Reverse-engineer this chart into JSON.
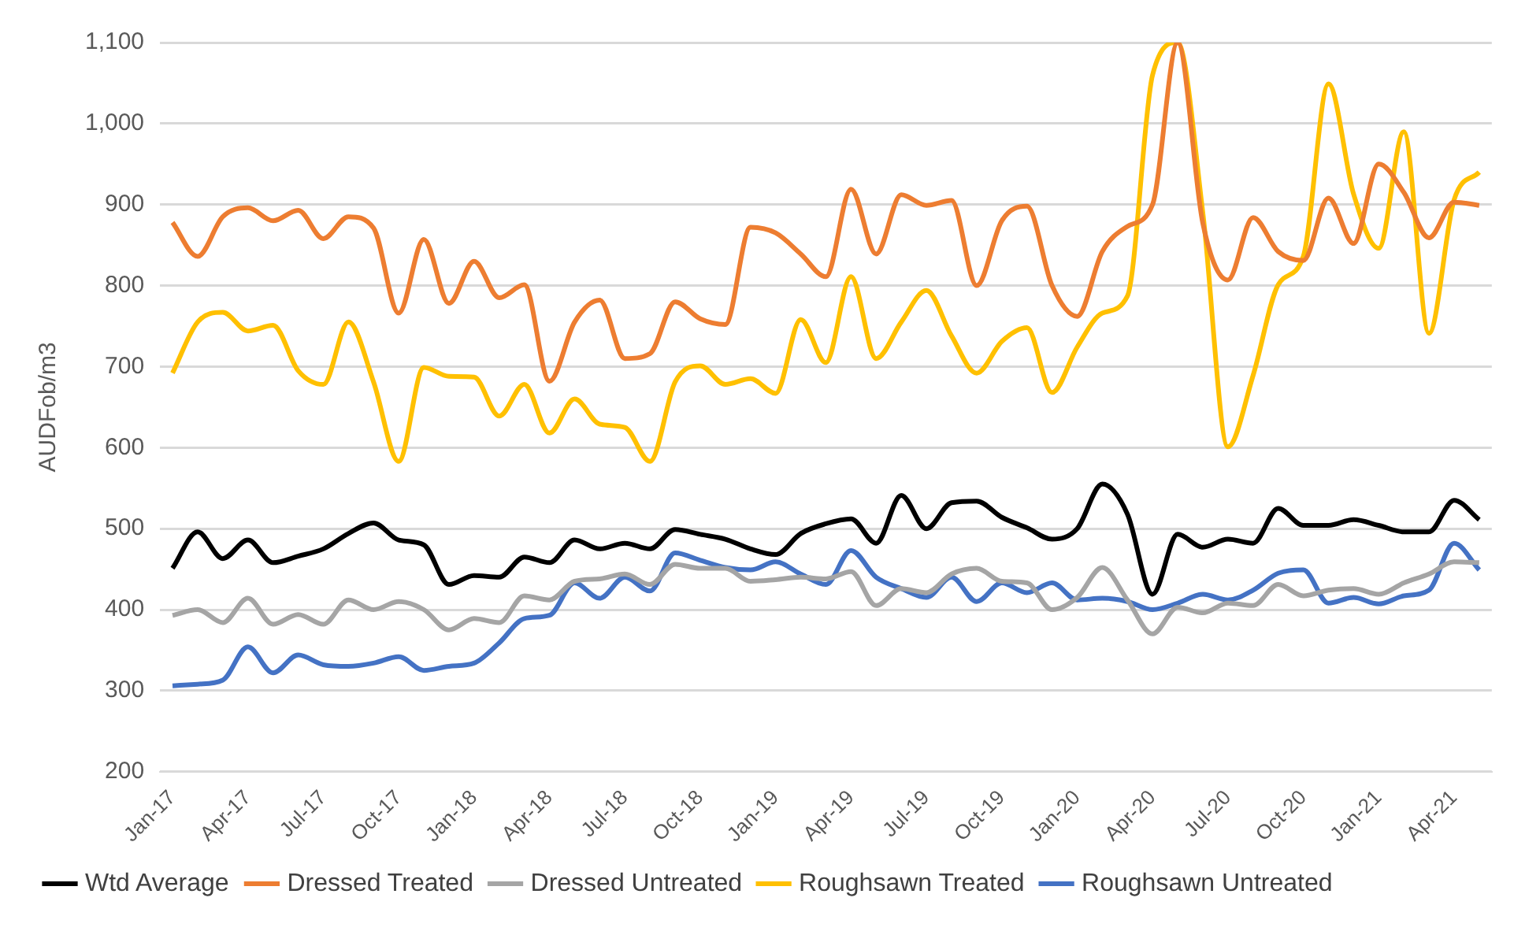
{
  "chart_data": {
    "type": "line",
    "ylabel": "AUDFob/m3",
    "categories": [
      "Jan-17",
      null,
      null,
      "Apr-17",
      null,
      null,
      "Jul-17",
      null,
      null,
      "Oct-17",
      null,
      null,
      "Jan-18",
      null,
      null,
      "Apr-18",
      null,
      null,
      "Jul-18",
      null,
      null,
      "Oct-18",
      null,
      null,
      "Jan-19",
      null,
      null,
      "Apr-19",
      null,
      null,
      "Jul-19",
      null,
      null,
      "Oct-19",
      null,
      null,
      "Jan-20",
      null,
      null,
      "Apr-20",
      null,
      null,
      "Jul-20",
      null,
      null,
      "Oct-20",
      null,
      null,
      "Jan-21",
      null,
      null,
      "Apr-21",
      null
    ],
    "series": [
      {
        "name": "Wtd Average",
        "color": "#000000",
        "values": [
          451,
          496,
          463,
          486,
          458,
          466,
          475,
          494,
          507,
          486,
          480,
          431,
          442,
          440,
          465,
          458,
          486,
          475,
          482,
          475,
          499,
          493,
          487,
          475,
          468,
          494,
          506,
          512,
          482,
          541,
          500,
          532,
          534,
          514,
          501,
          487,
          500,
          555,
          518,
          419,
          493,
          477,
          487,
          482,
          525,
          504,
          504,
          511,
          504,
          496,
          496,
          535,
          511
        ]
      },
      {
        "name": "Dressed Treated",
        "color": "#ed7d31",
        "values": [
          878,
          836,
          885,
          896,
          880,
          893,
          858,
          885,
          871,
          766,
          857,
          778,
          830,
          785,
          801,
          682,
          755,
          782,
          710,
          716,
          780,
          759,
          752,
          872,
          865,
          839,
          811,
          919,
          839,
          912,
          899,
          905,
          800,
          880,
          898,
          800,
          762,
          842,
          873,
          900,
          1100,
          877,
          807,
          884,
          842,
          831,
          908,
          852,
          950,
          915,
          859,
          903,
          899
        ]
      },
      {
        "name": "Dressed Untreated",
        "color": "#a5a5a5",
        "values": [
          393,
          400,
          384,
          414,
          382,
          394,
          382,
          412,
          400,
          410,
          400,
          375,
          389,
          384,
          417,
          412,
          435,
          438,
          444,
          431,
          456,
          451,
          451,
          435,
          437,
          440,
          438,
          447,
          405,
          426,
          421,
          444,
          451,
          435,
          433,
          400,
          415,
          452,
          412,
          370,
          403,
          396,
          408,
          405,
          431,
          417,
          424,
          426,
          419,
          433,
          444,
          459,
          458
        ]
      },
      {
        "name": "Roughsawn Treated",
        "color": "#ffc000",
        "values": [
          692,
          755,
          767,
          744,
          751,
          695,
          678,
          755,
          681,
          583,
          699,
          688,
          687,
          639,
          678,
          618,
          660,
          629,
          625,
          583,
          681,
          701,
          678,
          685,
          667,
          758,
          705,
          811,
          710,
          755,
          794,
          738,
          692,
          731,
          748,
          668,
          724,
          766,
          787,
          1060,
          1100,
          890,
          601,
          689,
          801,
          836,
          1049,
          913,
          846,
          990,
          741,
          906,
          940
        ]
      },
      {
        "name": "Roughsawn Untreated",
        "color": "#4472c4",
        "values": [
          306,
          308,
          313,
          354,
          322,
          344,
          332,
          330,
          334,
          342,
          325,
          330,
          334,
          359,
          389,
          393,
          433,
          414,
          440,
          423,
          470,
          461,
          452,
          449,
          459,
          444,
          431,
          473,
          440,
          426,
          415,
          440,
          410,
          433,
          421,
          433,
          412,
          414,
          410,
          400,
          408,
          419,
          412,
          424,
          445,
          449,
          408,
          415,
          407,
          417,
          424,
          482,
          449
        ]
      }
    ],
    "ylim": [
      200,
      1100
    ],
    "yticks": [
      200,
      300,
      400,
      500,
      600,
      700,
      800,
      900,
      {
        "value": 1000,
        "label": "1,000"
      },
      {
        "value": 1100,
        "label": "1,100"
      }
    ],
    "grid": "y",
    "legend": "bottom",
    "marker": "none",
    "line_style": "solid"
  }
}
